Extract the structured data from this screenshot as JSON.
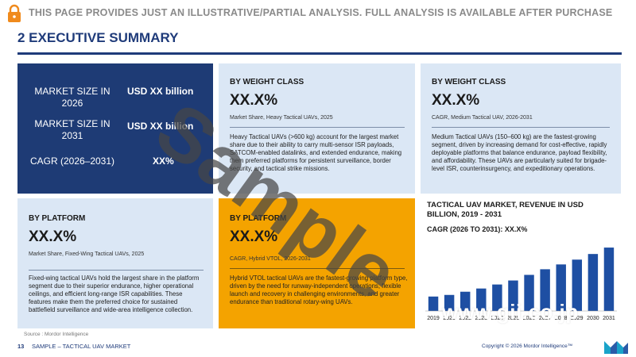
{
  "banner": {
    "text": "THIS PAGE PROVIDES JUST AN ILLUSTRATIVE/PARTIAL ANALYSIS. FULL ANALYSIS IS AVAILABLE AFTER PURCHASE"
  },
  "page": {
    "title": "2 EXECUTIVE SUMMARY"
  },
  "market": {
    "rows": [
      {
        "label": "MARKET SIZE IN 2026",
        "value": "USD XX billion"
      },
      {
        "label": "MARKET SIZE IN 2031",
        "value": "USD XX billion"
      },
      {
        "label": "CAGR (2026–2031)",
        "value": "XX%"
      }
    ]
  },
  "weight_heavy": {
    "heading": "BY WEIGHT CLASS",
    "value": "XX.X%",
    "caption": "Market Share, Heavy Tactical UAVs, 2025",
    "description": "Heavy Tactical UAVs (>600 kg) account for the largest market share due to their ability to carry multi-sensor ISR payloads, SATCOM-enabled datalinks, and extended endurance, making them preferred platforms for persistent surveillance, border security, and tactical strike missions."
  },
  "weight_medium": {
    "heading": "BY WEIGHT CLASS",
    "value": "XX.X%",
    "caption": "CAGR, Medium Tactical UAV, 2026-2031",
    "description": "Medium Tactical UAVs (150–600 kg) are the fastest-growing segment, driven by increasing demand for cost-effective, rapidly deployable platforms that balance endurance, payload flexibility, and affordability. These UAVs are particularly suited for brigade-level ISR, counterinsurgency, and expeditionary operations."
  },
  "platform_fixed": {
    "heading": "BY PLATFORM",
    "value": "XX.X%",
    "caption": "Market Share, Fixed-Wing Tactical UAVs, 2025",
    "description": "Fixed-wing tactical UAVs hold the largest share in the platform segment due to their superior endurance, higher operational ceilings, and efficient long-range ISR capabilities. These features make them the preferred choice for sustained battlefield surveillance and wide-area intelligence collection."
  },
  "platform_hybrid": {
    "heading": "BY PLATFORM",
    "value": "XX.X%",
    "caption": "CAGR, Hybrid VTOL, 2026-2031",
    "description": "Hybrid VTOL tactical UAVs are the fastest-growing platform type, driven by the need for runway-independent operations, flexible launch and recovery in challenging environments, and greater endurance than traditional rotary-wing UAVs."
  },
  "chart_data": {
    "type": "bar",
    "title": "TACTICAL UAV MARKET, REVENUE IN USD BILLION, 2019 - 2031",
    "subtitle": "CAGR (2026 TO 2031): XX.X%",
    "categories": [
      "2019",
      "2020",
      "2022",
      "2023",
      "2024",
      "2025",
      "2026",
      "2027",
      "2028",
      "2029",
      "2030",
      "2031"
    ],
    "values": [
      18,
      20,
      24,
      28,
      33,
      38,
      45,
      52,
      58,
      64,
      71,
      79
    ],
    "ylim": [
      0,
      85
    ],
    "grid": false,
    "bar_color": "#1e4fa3"
  },
  "source": "Source : Mordor Intelligence",
  "footer": {
    "page_number": "13",
    "text": "SAMPLE – TACTICAL UAV MARKET",
    "copyright": "Copyright © 2026 Mordor Intelligence™"
  },
  "website": "www.gii.co.jp",
  "watermark": "Sample",
  "colors": {
    "navy": "#1e3b75",
    "light_blue": "#dbe7f5",
    "orange": "#f4a300",
    "title_blue": "#1f3b7a"
  }
}
